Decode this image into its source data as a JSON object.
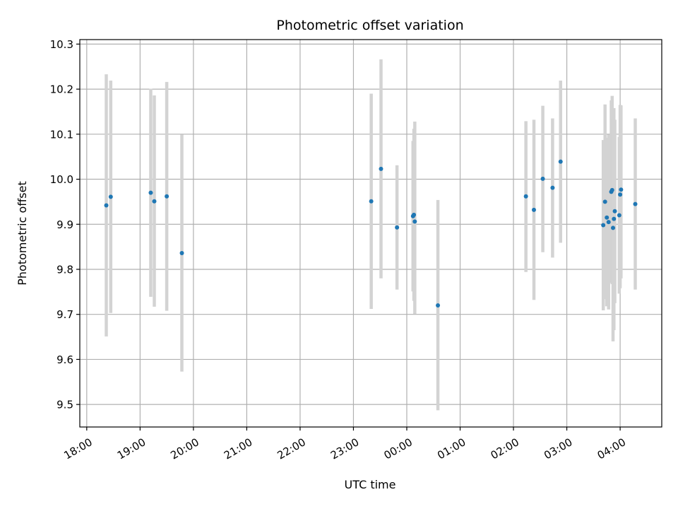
{
  "chart_data": {
    "type": "scatter",
    "title": "Photometric offset variation",
    "xlabel": "UTC time",
    "ylabel": "Photometric offset",
    "x_axis": "UTC time (hours since 18:00; values past 24 are after midnight)",
    "xlim": [
      17.87,
      28.78
    ],
    "ylim": [
      9.45,
      10.31
    ],
    "x_ticks": [
      {
        "value": 18,
        "label": "18:00"
      },
      {
        "value": 19,
        "label": "19:00"
      },
      {
        "value": 20,
        "label": "20:00"
      },
      {
        "value": 21,
        "label": "21:00"
      },
      {
        "value": 22,
        "label": "22:00"
      },
      {
        "value": 23,
        "label": "23:00"
      },
      {
        "value": 24,
        "label": "00:00"
      },
      {
        "value": 25,
        "label": "01:00"
      },
      {
        "value": 26,
        "label": "02:00"
      },
      {
        "value": 27,
        "label": "03:00"
      },
      {
        "value": 28,
        "label": "04:00"
      }
    ],
    "y_ticks": [
      "9.5",
      "9.6",
      "9.7",
      "9.8",
      "9.9",
      "10.0",
      "10.1",
      "10.2",
      "10.3"
    ],
    "grid": true,
    "legend": "none",
    "colors": {
      "marker": "#1f77b4",
      "errorbar": "#d3d3d3",
      "grid": "#b0b0b0"
    },
    "points": [
      {
        "time": "18:22",
        "y": 9.942,
        "lo": 9.651,
        "hi": 10.233
      },
      {
        "time": "18:27",
        "y": 9.961,
        "lo": 9.703,
        "hi": 10.219
      },
      {
        "time": "19:12",
        "y": 9.97,
        "lo": 9.739,
        "hi": 10.201
      },
      {
        "time": "19:16",
        "y": 9.951,
        "lo": 9.717,
        "hi": 10.186
      },
      {
        "time": "19:30",
        "y": 9.962,
        "lo": 9.708,
        "hi": 10.216
      },
      {
        "time": "19:47",
        "y": 9.836,
        "lo": 9.573,
        "hi": 10.099
      },
      {
        "time": "23:20",
        "y": 9.951,
        "lo": 9.712,
        "hi": 10.19
      },
      {
        "time": "23:31",
        "y": 10.023,
        "lo": 9.78,
        "hi": 10.266
      },
      {
        "time": "23:49",
        "y": 9.893,
        "lo": 9.755,
        "hi": 10.031
      },
      {
        "time": "00:07",
        "y": 9.918,
        "lo": 9.751,
        "hi": 10.085
      },
      {
        "time": "00:08",
        "y": 9.921,
        "lo": 9.73,
        "hi": 10.112
      },
      {
        "time": "00:09",
        "y": 9.906,
        "lo": 9.701,
        "hi": 10.128
      },
      {
        "time": "00:35",
        "y": 9.72,
        "lo": 9.487,
        "hi": 9.954
      },
      {
        "time": "02:14",
        "y": 9.962,
        "lo": 9.794,
        "hi": 10.129
      },
      {
        "time": "02:23",
        "y": 9.932,
        "lo": 9.732,
        "hi": 10.132
      },
      {
        "time": "02:33",
        "y": 10.001,
        "lo": 9.838,
        "hi": 10.163
      },
      {
        "time": "02:44",
        "y": 9.981,
        "lo": 9.826,
        "hi": 10.135
      },
      {
        "time": "02:53",
        "y": 10.039,
        "lo": 9.859,
        "hi": 10.219
      },
      {
        "time": "03:41",
        "y": 9.898,
        "lo": 9.709,
        "hi": 10.087
      },
      {
        "time": "03:43",
        "y": 9.95,
        "lo": 9.734,
        "hi": 10.166
      },
      {
        "time": "03:45",
        "y": 9.915,
        "lo": 9.718,
        "hi": 10.092
      },
      {
        "time": "03:47",
        "y": 9.905,
        "lo": 9.711,
        "hi": 10.099
      },
      {
        "time": "03:50",
        "y": 9.972,
        "lo": 9.77,
        "hi": 10.175
      },
      {
        "time": "03:51",
        "y": 9.976,
        "lo": 9.767,
        "hi": 10.185
      },
      {
        "time": "03:52",
        "y": 9.892,
        "lo": 9.64,
        "hi": 10.135
      },
      {
        "time": "03:53",
        "y": 9.912,
        "lo": 9.665,
        "hi": 10.158
      },
      {
        "time": "03:54",
        "y": 9.929,
        "lo": 9.725,
        "hi": 10.132
      },
      {
        "time": "03:59",
        "y": 9.92,
        "lo": 9.746,
        "hi": 10.094
      },
      {
        "time": "04:00",
        "y": 9.966,
        "lo": 9.758,
        "hi": 10.165
      },
      {
        "time": "04:01",
        "y": 9.977,
        "lo": 9.78,
        "hi": 10.164
      },
      {
        "time": "04:17",
        "y": 9.945,
        "lo": 9.755,
        "hi": 10.135
      }
    ]
  }
}
